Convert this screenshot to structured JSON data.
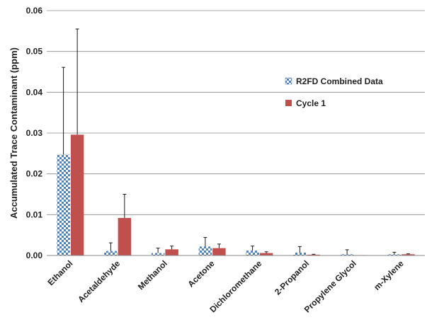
{
  "chart_data": {
    "type": "bar",
    "ylabel": "Accumulated Trace Contaminant (ppm)",
    "ylim": [
      0,
      0.06
    ],
    "yticks": [
      "0.00",
      "0.01",
      "0.02",
      "0.03",
      "0.04",
      "0.05",
      "0.06"
    ],
    "grid": true,
    "legend_position": "right",
    "categories": [
      "Ethanol",
      "Acetaldehyde",
      "Methanol",
      "Acetone",
      "Dichloromethane",
      "2-Propanol",
      "Propylene Glycol",
      "m-Xylene"
    ],
    "series": [
      {
        "name": "R2FD Combined Data",
        "pattern": "checkered",
        "color": "#4f81bd",
        "values": [
          0.0247,
          0.0011,
          0.0006,
          0.0022,
          0.0012,
          0.0007,
          0.0003,
          0.0003
        ],
        "error_plus": [
          0.0214,
          0.002,
          0.0012,
          0.0022,
          0.0011,
          0.0015,
          0.0011,
          0.0005
        ]
      },
      {
        "name": "Cycle 1",
        "pattern": "solid",
        "color": "#c0504d",
        "values": [
          0.0296,
          0.0092,
          0.0015,
          0.0018,
          0.0006,
          0.0002,
          0.0001,
          0.0003
        ],
        "error_plus": [
          0.0259,
          0.0058,
          0.0008,
          0.001,
          0.0003,
          0.0001,
          0.0,
          0.0001
        ]
      }
    ]
  }
}
